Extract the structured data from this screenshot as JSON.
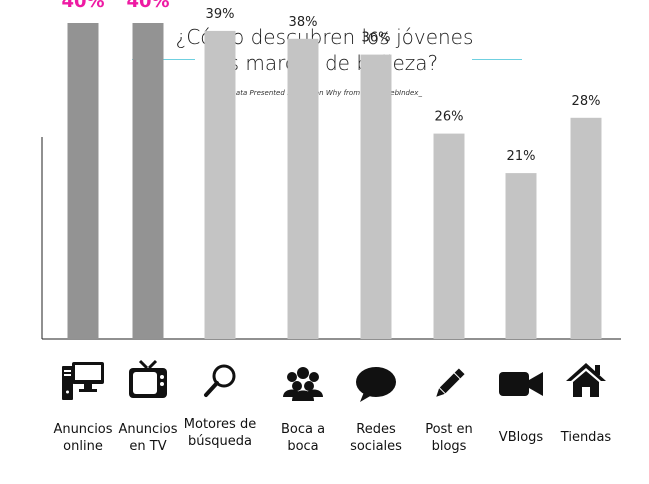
{
  "header": {
    "title_line1": "¿Cómo descubren los jóvenes",
    "title_line2": "las marcas de belleza?",
    "subtitle": "_Data Presented by Reason Why from GlobalwebIndex_"
  },
  "colors": {
    "highlight_bar": "#939393",
    "normal_bar": "#c4c4c4",
    "highlight_label": "#ee1aa3",
    "normal_label": "#222222",
    "accent_line": "#6fd0e0",
    "axis": "#222222"
  },
  "chart_data": {
    "type": "bar",
    "title": "¿Cómo descubren los jóvenes las marcas de belleza?",
    "categories": [
      "Anuncios\nonline",
      "Anuncios\nen TV",
      "Motores de\nbúsqueda",
      "Boca a\nboca",
      "Redes\nsociales",
      "Post en\nblogs",
      "VBlogs",
      "Tiendas"
    ],
    "values": [
      40,
      40,
      39,
      38,
      36,
      26,
      21,
      28
    ],
    "value_labels": [
      "40%",
      "40%",
      "39%",
      "38%",
      "36%",
      "26%",
      "21%",
      "28%"
    ],
    "highlighted": [
      true,
      true,
      false,
      false,
      false,
      false,
      false,
      false
    ],
    "ylim": [
      0,
      50
    ],
    "grid": false,
    "icons": [
      "computer-icon",
      "tv-icon",
      "search-icon",
      "people-icon",
      "speech-bubble-icon",
      "pencil-icon",
      "video-camera-icon",
      "house-icon"
    ]
  }
}
